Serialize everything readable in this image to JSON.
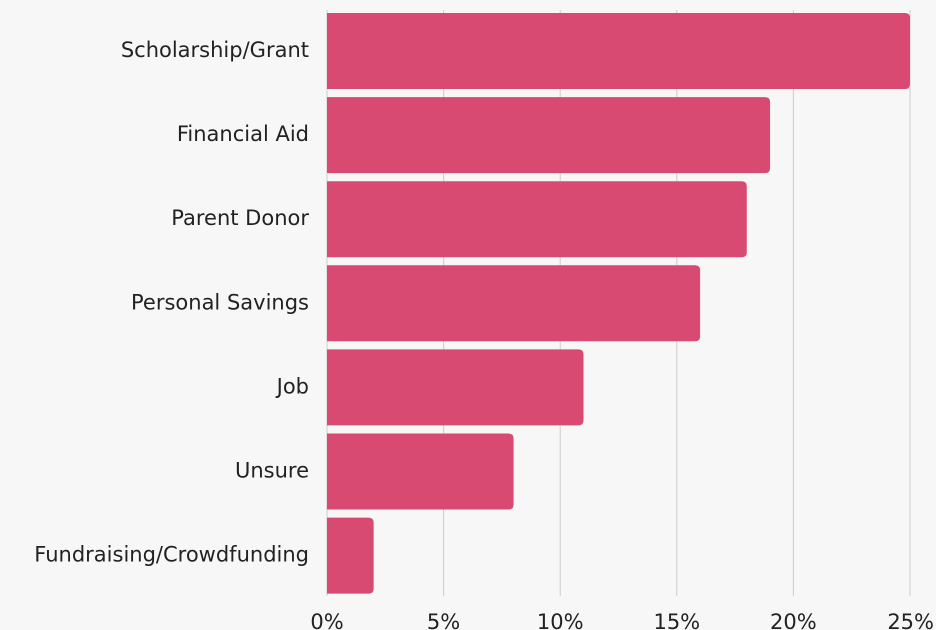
{
  "chart_data": {
    "type": "bar",
    "orientation": "horizontal",
    "categories": [
      "Scholarship/Grant",
      "Financial Aid",
      "Parent Donor",
      "Personal Savings",
      "Job",
      "Unsure",
      "Fundraising/Crowdfunding"
    ],
    "values": [
      25,
      19,
      18,
      16,
      11,
      8,
      2
    ],
    "unit": "%",
    "xlim": [
      0,
      25
    ],
    "x_ticks": [
      0,
      5,
      10,
      15,
      20,
      25
    ],
    "x_tick_labels": [
      "0%",
      "5%",
      "10%",
      "15%",
      "20%",
      "25%"
    ],
    "grid": "vertical",
    "legend": "none",
    "title": "",
    "xlabel": "",
    "ylabel": ""
  },
  "colors": {
    "background": "#f7f7f7",
    "bar": "#d84a72",
    "grid": "#cccccc",
    "text": "#222222"
  }
}
